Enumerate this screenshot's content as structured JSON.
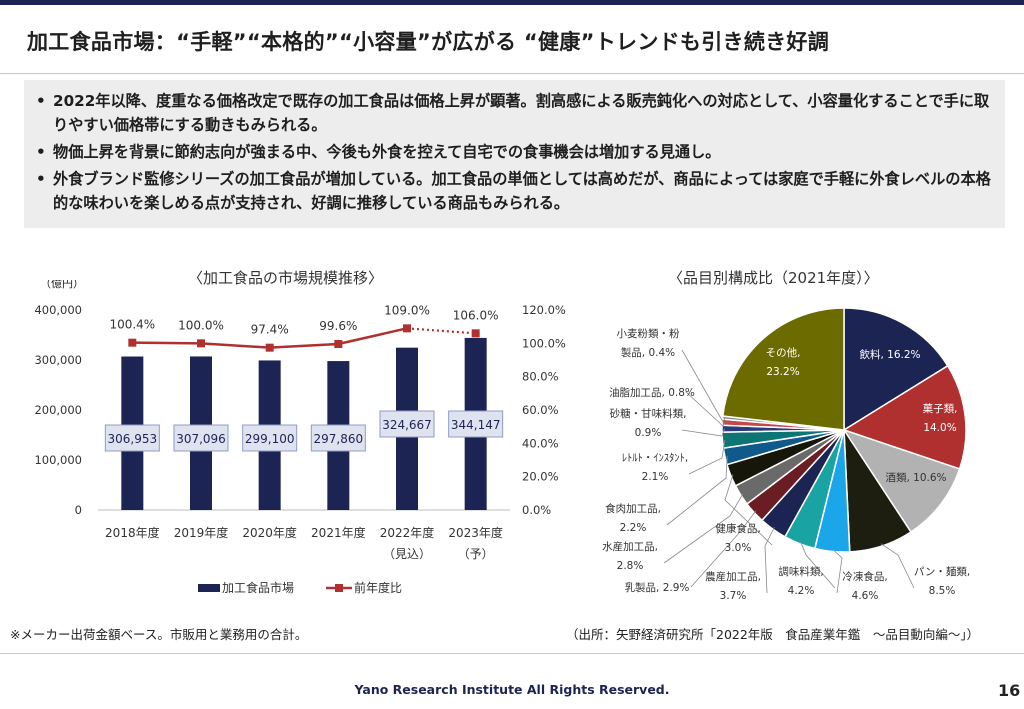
{
  "title": "加工食品市場：“手軽”“本格的”“小容量”が広がる “健康”トレンドも引き続き好調",
  "bullets": [
    "2022年以降、度重なる価格改定で既存の加工食品は価格上昇が顕著。割高感による販売鈍化への対応として、小容量化することで手に取りやすい価格帯にする動きもみられる。",
    "物価上昇を背景に節約志向が強まる中、今後も外食を控えて自宅での食事機会は増加する見通し。",
    "外食ブランド監修シリーズの加工食品が増加している。加工食品の単価としては高めだが、商品によっては家庭で手軽に外食レベルの本格的な味わいを楽しめる点が支持され、好調に推移している商品もみられる。"
  ],
  "bullet_mark": "•",
  "chart_data": [
    {
      "type": "bar",
      "title": "〈加工食品の市場規模推移〉",
      "unit_label": "（億円）",
      "categories": [
        "2018年度",
        "2019年度",
        "2020年度",
        "2021年度",
        "2022年度",
        "2023年度"
      ],
      "category_notes": [
        "",
        "",
        "",
        "",
        "（見込）",
        "（予）"
      ],
      "series": [
        {
          "name": "加工食品市場",
          "kind": "bar",
          "axis": "left",
          "color": "#1c2453",
          "values": [
            306953,
            307096,
            299100,
            297860,
            324667,
            344147
          ],
          "labels": [
            "306,953",
            "307,096",
            "299,100",
            "297,860",
            "324,667",
            "344,147"
          ]
        },
        {
          "name": "前年度比",
          "kind": "line",
          "axis": "right",
          "color": "#b03030",
          "values": [
            100.4,
            100.0,
            97.4,
            99.6,
            109.0,
            106.0
          ],
          "labels": [
            "100.4%",
            "100.0%",
            "97.4%",
            "99.6%",
            "109.0%",
            "106.0%"
          ],
          "dotted_from_index": 4
        }
      ],
      "ylim_left": [
        0,
        400000
      ],
      "yticks_left": [
        "0",
        "100,000",
        "200,000",
        "300,000",
        "400,000"
      ],
      "ylim_right": [
        0,
        120
      ],
      "yticks_right": [
        "0.0%",
        "20.0%",
        "40.0%",
        "60.0%",
        "80.0%",
        "100.0%",
        "120.0%"
      ],
      "legend": "bottom"
    },
    {
      "type": "pie",
      "title": "〈品目別構成比（2021年度）〉",
      "slices": [
        {
          "name": "飲料",
          "value": 16.2,
          "label": "飲料, 16.2%",
          "color": "#1c2453"
        },
        {
          "name": "菓子類",
          "value": 14.0,
          "label": "菓子類, 14.0%",
          "color": "#b03030"
        },
        {
          "name": "酒類",
          "value": 10.6,
          "label": "酒類, 10.6%",
          "color": "#b2b2b2"
        },
        {
          "name": "パン・麺類",
          "value": 8.5,
          "label": "パン・麺類, 8.5%",
          "color": "#1e1e10"
        },
        {
          "name": "冷凍食品",
          "value": 4.6,
          "label": "冷凍食品, 4.6%",
          "color": "#1aa6e8"
        },
        {
          "name": "調味料類",
          "value": 4.2,
          "label": "調味料類, 4.2%",
          "color": "#1aa3a3"
        },
        {
          "name": "農産加工品",
          "value": 3.7,
          "label": "農産加工品, 3.7%",
          "color": "#1c2453"
        },
        {
          "name": "乳製品",
          "value": 2.9,
          "label": "乳製品, 2.9%",
          "color": "#6a1d22"
        },
        {
          "name": "水産加工品",
          "value": 2.8,
          "label": "水産加工品, 2.8%",
          "color": "#6a6a6a"
        },
        {
          "name": "健康食品",
          "value": 3.0,
          "label": "健康食品, 3.0%",
          "color": "#16160b"
        },
        {
          "name": "食肉加工品",
          "value": 2.2,
          "label": "食肉加工品, 2.2%",
          "color": "#0f5a8a"
        },
        {
          "name": "ﾚﾄﾙﾄ・ｲﾝｽﾀﾝﾄ",
          "value": 2.1,
          "label": "ﾚﾄﾙﾄ・ｲﾝｽﾀﾝﾄ, 2.1%",
          "color": "#0e7575"
        },
        {
          "name": "砂糖・甘味料類",
          "value": 0.9,
          "label": "砂糖・甘味料類, 0.9%",
          "color": "#2b3a7a"
        },
        {
          "name": "油脂加工品",
          "value": 0.8,
          "label": "油脂加工品, 0.8%",
          "color": "#c44a4a"
        },
        {
          "name": "小麦粉類・粉製品",
          "value": 0.4,
          "label": "小麦粉類・粉製品, 0.4%",
          "color": "#8a8a8a"
        },
        {
          "name": "その他",
          "value": 23.2,
          "label": "その他, 23.2%",
          "color": "#6b6b00"
        }
      ]
    }
  ],
  "footnote": "※メーカー出荷金額ベース。市販用と業務用の合計。",
  "source": "（出所：矢野経済研究所「2022年版　食品産業年鑑　～品目動向編～」）",
  "copyright": "Yano Research Institute All Rights Reserved.",
  "page_number": "16"
}
